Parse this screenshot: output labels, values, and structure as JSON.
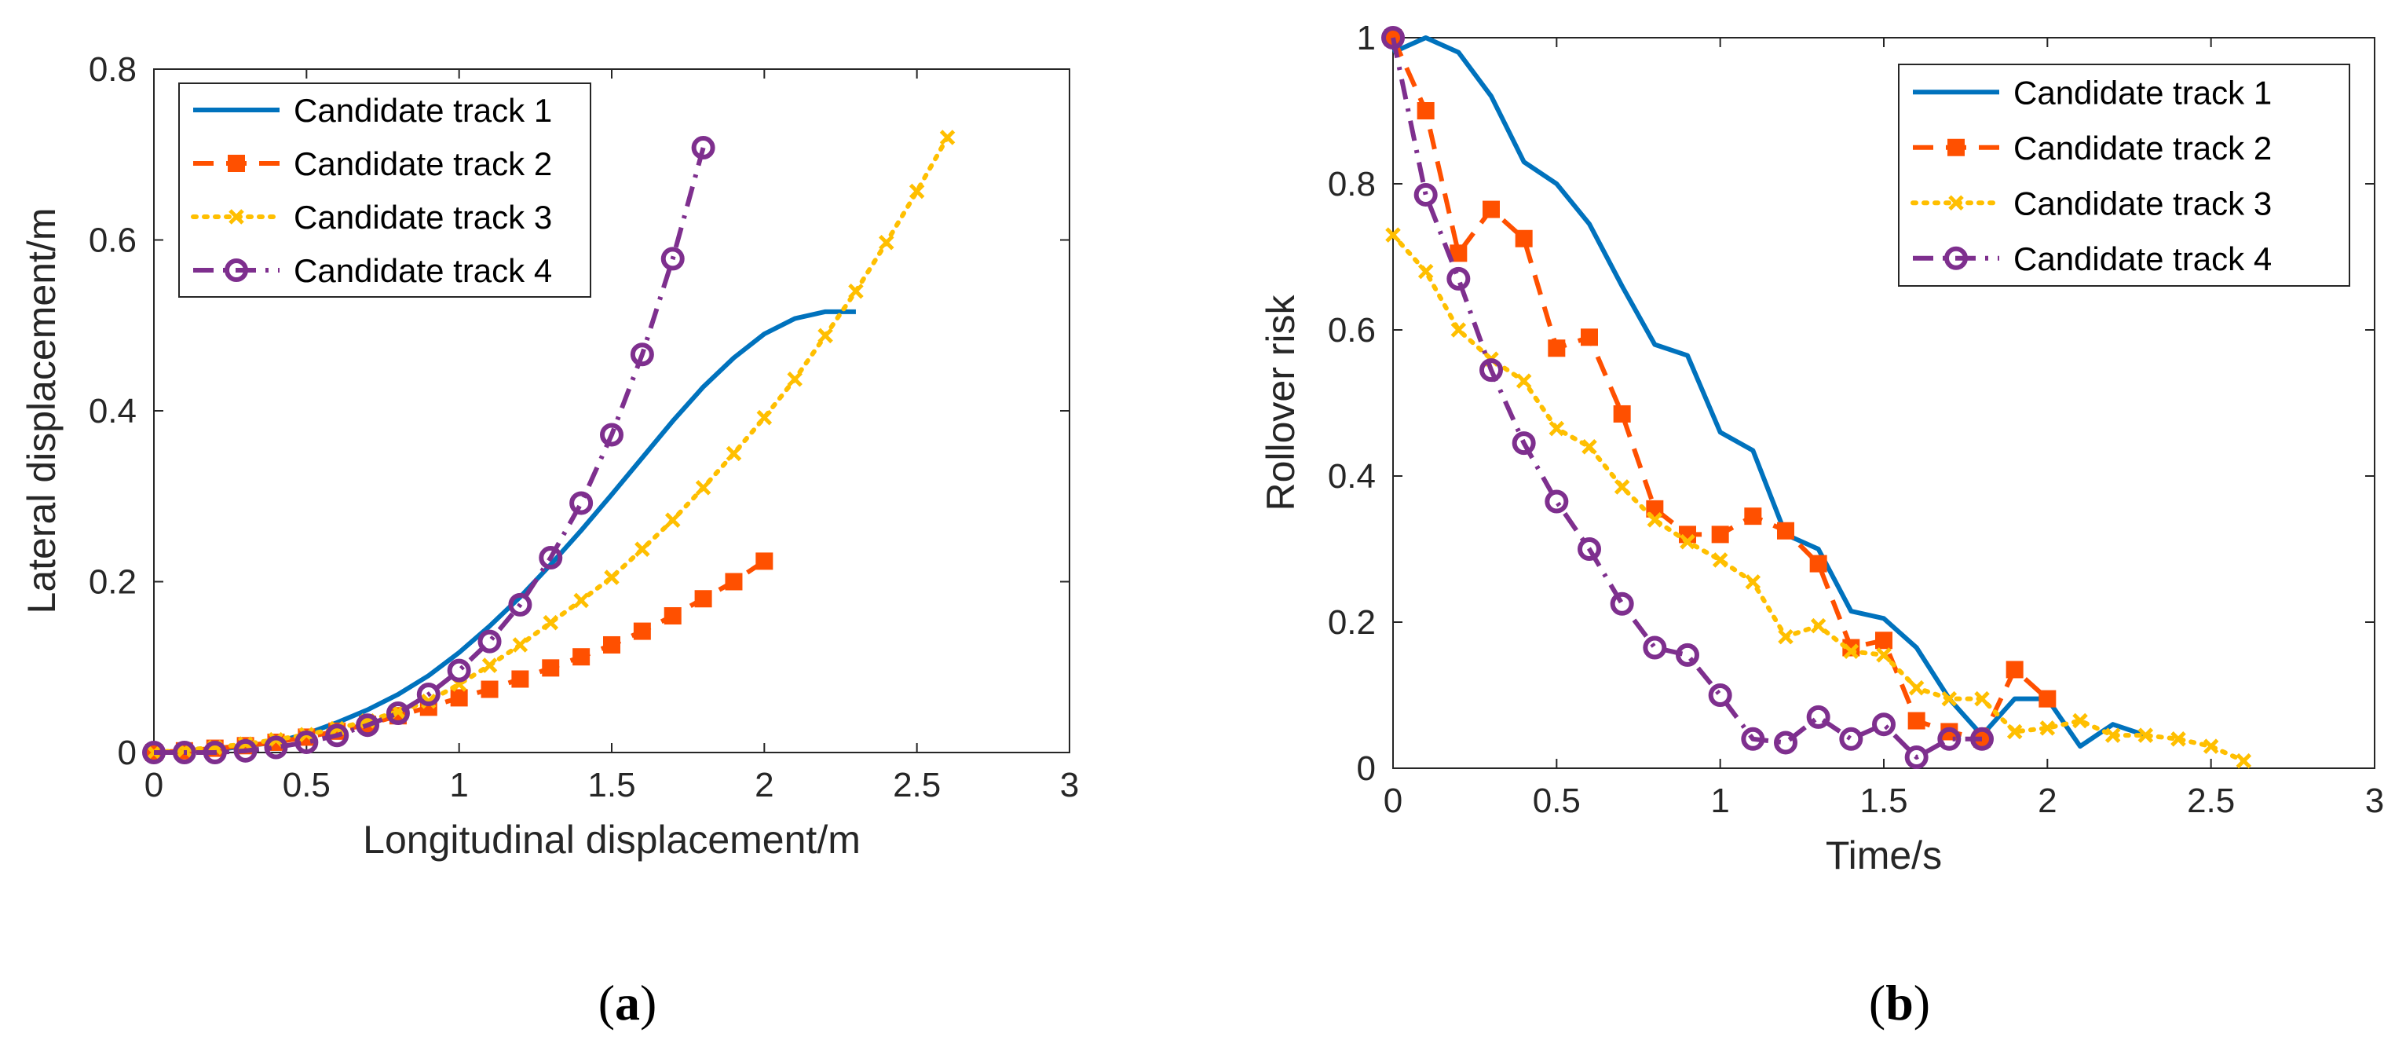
{
  "colors": {
    "track1": "#0072BD",
    "track2": "#FF5000",
    "track3": "#FFBF00",
    "track4": "#7E2F8E",
    "axis": "#262626"
  },
  "chart_data": [
    {
      "id": "a",
      "type": "line",
      "caption": "a",
      "xlabel": "Longitudinal displacement/m",
      "ylabel": "Lateral displacement/m",
      "xlim": [
        0,
        3
      ],
      "ylim": [
        0,
        0.8
      ],
      "xticks": [
        0,
        0.5,
        1,
        1.5,
        2,
        2.5,
        3
      ],
      "xtick_labels": [
        "0",
        "0.5",
        "1",
        "1.5",
        "2",
        "2.5",
        "3"
      ],
      "yticks": [
        0,
        0.2,
        0.4,
        0.6,
        0.8
      ],
      "ytick_labels": [
        "0",
        "0.2",
        "0.4",
        "0.6",
        "0.8"
      ],
      "grid": false,
      "legend_position": "top-left",
      "series": [
        {
          "name": "Candidate track 1",
          "style": "solid",
          "marker": "none",
          "x": [
            0,
            0.2,
            0.4,
            0.5,
            0.6,
            0.7,
            0.8,
            0.9,
            1.0,
            1.1,
            1.2,
            1.3,
            1.4,
            1.5,
            1.6,
            1.7,
            1.8,
            1.9,
            2.0,
            2.1,
            2.2,
            2.3
          ],
          "y": [
            0,
            0.003,
            0.012,
            0.022,
            0.035,
            0.05,
            0.068,
            0.09,
            0.117,
            0.148,
            0.182,
            0.22,
            0.26,
            0.302,
            0.345,
            0.388,
            0.428,
            0.462,
            0.49,
            0.508,
            0.516,
            0.516
          ]
        },
        {
          "name": "Candidate track 2",
          "style": "dashed",
          "marker": "square",
          "x": [
            0,
            0.1,
            0.2,
            0.3,
            0.4,
            0.5,
            0.6,
            0.7,
            0.8,
            0.9,
            1.0,
            1.1,
            1.2,
            1.3,
            1.4,
            1.5,
            1.6,
            1.7,
            1.8,
            1.9,
            2.0
          ],
          "y": [
            0,
            0.002,
            0.005,
            0.008,
            0.012,
            0.018,
            0.025,
            0.033,
            0.043,
            0.053,
            0.064,
            0.074,
            0.086,
            0.099,
            0.112,
            0.126,
            0.142,
            0.16,
            0.18,
            0.2,
            0.224
          ]
        },
        {
          "name": "Candidate track 3",
          "style": "dotted",
          "marker": "x",
          "x": [
            0,
            0.1,
            0.2,
            0.3,
            0.4,
            0.5,
            0.6,
            0.7,
            0.8,
            0.9,
            1.0,
            1.1,
            1.2,
            1.3,
            1.4,
            1.5,
            1.6,
            1.7,
            1.8,
            1.9,
            2.0,
            2.1,
            2.2,
            2.3,
            2.4,
            2.5,
            2.6
          ],
          "y": [
            0,
            0.003,
            0.006,
            0.01,
            0.015,
            0.021,
            0.028,
            0.037,
            0.048,
            0.06,
            0.08,
            0.102,
            0.126,
            0.152,
            0.178,
            0.205,
            0.238,
            0.272,
            0.31,
            0.35,
            0.392,
            0.437,
            0.488,
            0.54,
            0.597,
            0.657,
            0.72
          ]
        },
        {
          "name": "Candidate track 4",
          "style": "dashdot",
          "marker": "circle",
          "x": [
            0,
            0.1,
            0.2,
            0.3,
            0.4,
            0.5,
            0.6,
            0.7,
            0.8,
            0.9,
            1.0,
            1.1,
            1.2,
            1.3,
            1.4,
            1.5,
            1.6,
            1.7,
            1.8
          ],
          "y": [
            0,
            0,
            0,
            0.002,
            0.006,
            0.012,
            0.02,
            0.032,
            0.046,
            0.068,
            0.096,
            0.13,
            0.173,
            0.228,
            0.292,
            0.372,
            0.466,
            0.578,
            0.708
          ]
        }
      ]
    },
    {
      "id": "b",
      "type": "line",
      "caption": "b",
      "xlabel": "Time/s",
      "ylabel": "Rollover risk",
      "xlim": [
        0,
        3
      ],
      "ylim": [
        0,
        1
      ],
      "xticks": [
        0,
        0.5,
        1,
        1.5,
        2,
        2.5,
        3
      ],
      "xtick_labels": [
        "0",
        "0.5",
        "1",
        "1.5",
        "2",
        "2.5",
        "3"
      ],
      "yticks": [
        0,
        0.2,
        0.4,
        0.6,
        0.8,
        1
      ],
      "ytick_labels": [
        "0",
        "0.2",
        "0.4",
        "0.6",
        "0.8",
        "1"
      ],
      "grid": false,
      "legend_position": "top-right",
      "series": [
        {
          "name": "Candidate track 1",
          "style": "solid",
          "marker": "none",
          "x": [
            0,
            0.1,
            0.2,
            0.3,
            0.4,
            0.5,
            0.6,
            0.7,
            0.8,
            0.9,
            1.0,
            1.1,
            1.2,
            1.3,
            1.4,
            1.5,
            1.6,
            1.7,
            1.8,
            1.9,
            2.0,
            2.1,
            2.2,
            2.3
          ],
          "y": [
            0.98,
            1.0,
            0.98,
            0.92,
            0.83,
            0.8,
            0.745,
            0.66,
            0.58,
            0.565,
            0.46,
            0.435,
            0.32,
            0.3,
            0.215,
            0.205,
            0.165,
            0.095,
            0.045,
            0.095,
            0.095,
            0.03,
            0.06,
            0.045
          ]
        },
        {
          "name": "Candidate track 2",
          "style": "dashed",
          "marker": "square",
          "x": [
            0,
            0.1,
            0.2,
            0.3,
            0.4,
            0.5,
            0.6,
            0.7,
            0.8,
            0.9,
            1.0,
            1.1,
            1.2,
            1.3,
            1.4,
            1.5,
            1.6,
            1.7,
            1.8,
            1.9,
            2.0
          ],
          "y": [
            1.0,
            0.9,
            0.705,
            0.765,
            0.725,
            0.575,
            0.59,
            0.485,
            0.355,
            0.32,
            0.32,
            0.345,
            0.325,
            0.28,
            0.165,
            0.175,
            0.065,
            0.05,
            0.04,
            0.135,
            0.095
          ]
        },
        {
          "name": "Candidate track 3",
          "style": "dotted",
          "marker": "x",
          "x": [
            0,
            0.1,
            0.2,
            0.3,
            0.4,
            0.5,
            0.6,
            0.7,
            0.8,
            0.9,
            1.0,
            1.1,
            1.2,
            1.3,
            1.4,
            1.5,
            1.6,
            1.7,
            1.8,
            1.9,
            2.0,
            2.1,
            2.2,
            2.3,
            2.4,
            2.5,
            2.6
          ],
          "y": [
            0.73,
            0.68,
            0.6,
            0.56,
            0.53,
            0.465,
            0.44,
            0.385,
            0.34,
            0.31,
            0.285,
            0.255,
            0.18,
            0.195,
            0.16,
            0.155,
            0.11,
            0.095,
            0.095,
            0.05,
            0.055,
            0.065,
            0.045,
            0.045,
            0.04,
            0.03,
            0.01
          ]
        },
        {
          "name": "Candidate track 4",
          "style": "dashdot",
          "marker": "circle",
          "x": [
            0,
            0.1,
            0.2,
            0.3,
            0.4,
            0.5,
            0.6,
            0.7,
            0.8,
            0.9,
            1.0,
            1.1,
            1.2,
            1.3,
            1.4,
            1.5,
            1.6,
            1.7,
            1.8
          ],
          "y": [
            1.0,
            0.785,
            0.67,
            0.545,
            0.445,
            0.365,
            0.3,
            0.225,
            0.165,
            0.155,
            0.1,
            0.04,
            0.035,
            0.07,
            0.04,
            0.06,
            0.015,
            0.04,
            0.04
          ]
        }
      ]
    }
  ]
}
